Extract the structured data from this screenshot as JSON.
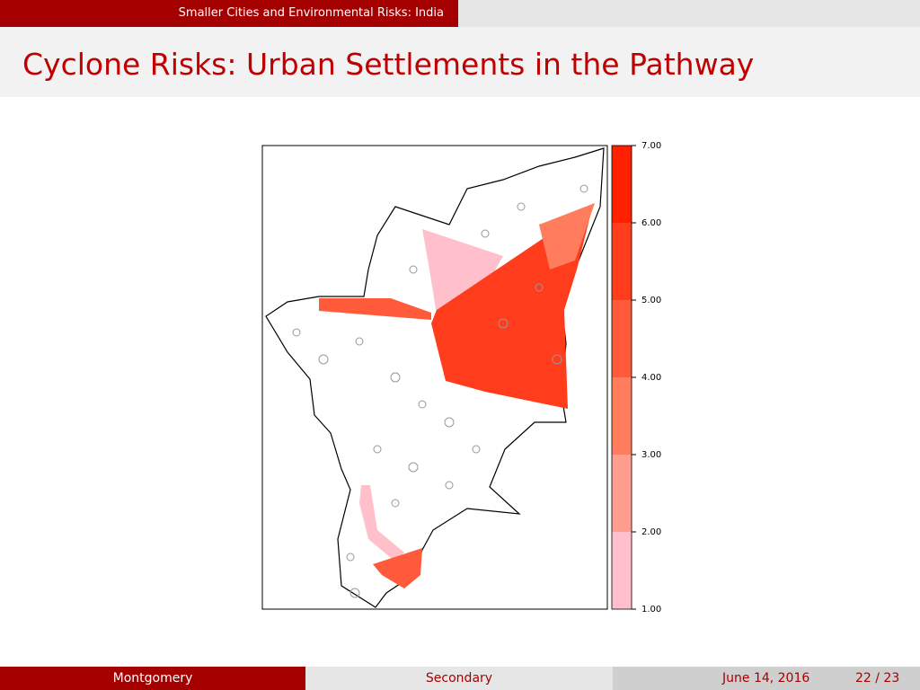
{
  "header": {
    "section": "Smaller Cities and Environmental Risks: India",
    "title": "Cyclone Risks: Urban Settlements in the Pathway"
  },
  "map": {
    "legend": {
      "ticks": [
        {
          "value": 1,
          "label": "1.00"
        },
        {
          "value": 2,
          "label": "2.00"
        },
        {
          "value": 3,
          "label": "3.00"
        },
        {
          "value": 4,
          "label": "4.00"
        },
        {
          "value": 5,
          "label": "5.00"
        },
        {
          "value": 6,
          "label": "6.00"
        },
        {
          "value": 7,
          "label": "7.00"
        }
      ],
      "colors": [
        "#ffc0cb",
        "#ff9e8e",
        "#ff7c5c",
        "#ff5a3a",
        "#ff3c1c",
        "#ff2000"
      ]
    }
  },
  "footer": {
    "author": "Montgomery",
    "subtitle": "Secondary",
    "date": "June 14, 2016",
    "page": "22 / 23"
  }
}
